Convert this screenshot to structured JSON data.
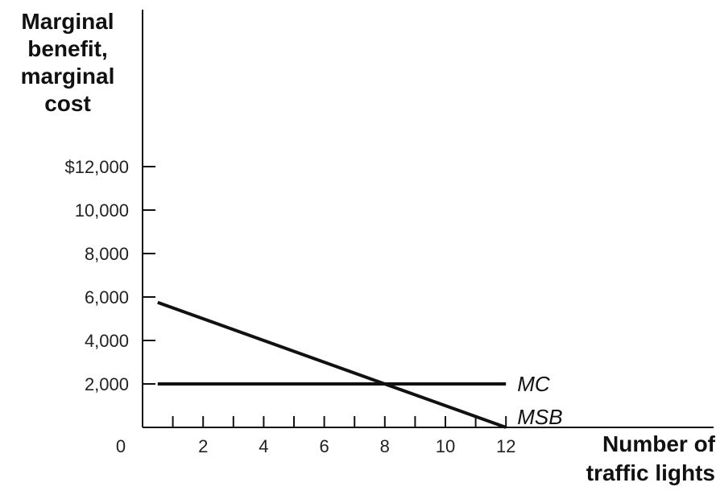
{
  "chart_data": {
    "type": "line",
    "title": "",
    "ylabel_lines": [
      "Marginal",
      "benefit,",
      "marginal",
      "cost"
    ],
    "xlabel_lines": [
      "Number of",
      "traffic lights"
    ],
    "y_ticks": [
      {
        "value": 12000,
        "label": "$12,000"
      },
      {
        "value": 10000,
        "label": "10,000"
      },
      {
        "value": 8000,
        "label": "8,000"
      },
      {
        "value": 6000,
        "label": "6,000"
      },
      {
        "value": 4000,
        "label": "4,000"
      },
      {
        "value": 2000,
        "label": "2,000"
      }
    ],
    "x_ticks": [
      {
        "value": 2,
        "label": "2"
      },
      {
        "value": 4,
        "label": "4"
      },
      {
        "value": 6,
        "label": "6"
      },
      {
        "value": 8,
        "label": "8"
      },
      {
        "value": 10,
        "label": "10"
      },
      {
        "value": 12,
        "label": "12"
      }
    ],
    "x_minor_ticks": [
      1,
      3,
      5,
      7,
      9,
      11
    ],
    "origin_label": "0",
    "xlim": [
      0,
      12
    ],
    "ylim": [
      0,
      12000
    ],
    "grid": false,
    "series": [
      {
        "name": "MC",
        "x": [
          0.5,
          12
        ],
        "y": [
          2000,
          2000
        ],
        "color": "#111111"
      },
      {
        "name": "MSB",
        "x": [
          0.5,
          12
        ],
        "y": [
          5750,
          0
        ],
        "color": "#111111"
      }
    ]
  }
}
